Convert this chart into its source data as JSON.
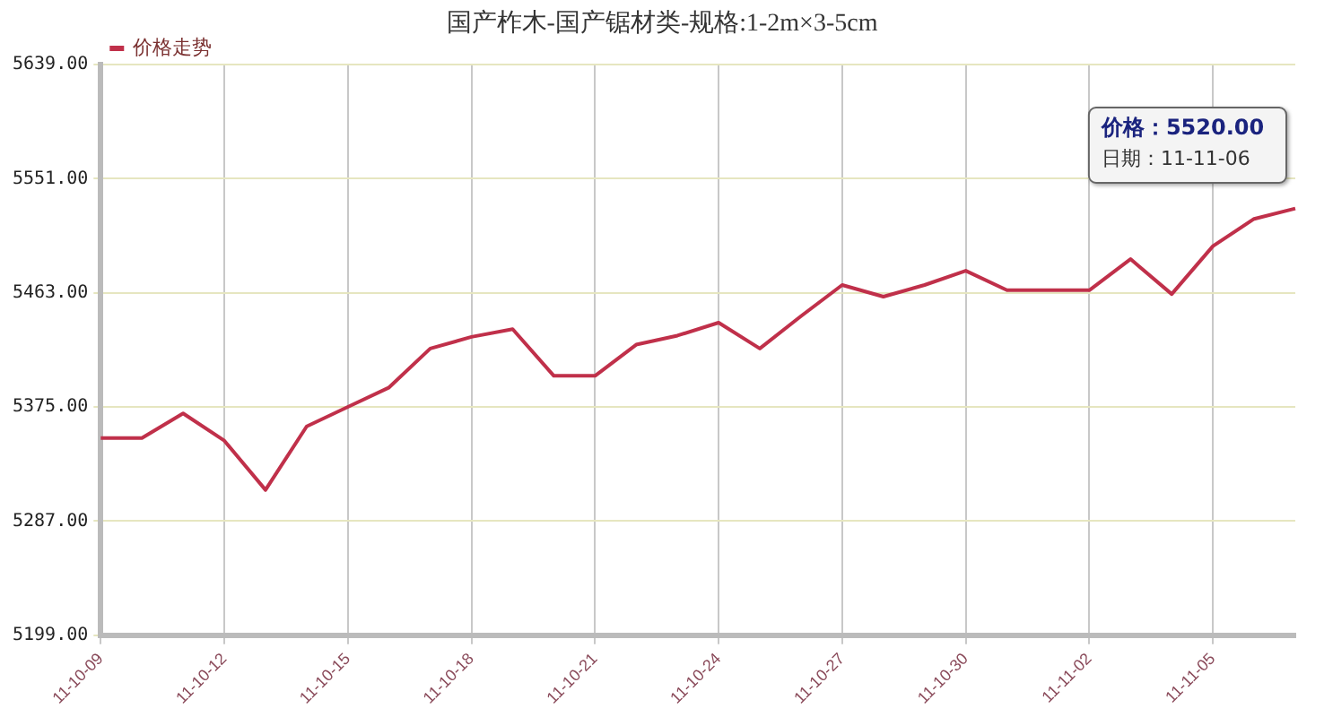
{
  "chart_data": {
    "type": "line",
    "title": "国产柞木-国产锯材类-规格:1-2m×3-5cm",
    "categories": [
      "11-10-09",
      null,
      null,
      "11-10-12",
      null,
      null,
      "11-10-15",
      null,
      null,
      "11-10-18",
      null,
      null,
      "11-10-21",
      null,
      null,
      "11-10-24",
      null,
      null,
      "11-10-27",
      null,
      null,
      "11-10-30",
      null,
      null,
      "11-11-02",
      null,
      null,
      "11-11-05",
      null,
      null
    ],
    "series": [
      {
        "name": "价格走势",
        "color": "#c0304a",
        "values": [
          5351,
          5351,
          5370,
          5349,
          5311,
          5360,
          5375,
          5390,
          5420,
          5429,
          5435,
          5399,
          5399,
          5423,
          5430,
          5440,
          5420,
          5445,
          5469,
          5460,
          5469,
          5480,
          5465,
          5465,
          5465,
          5489,
          5462,
          5499,
          5520,
          5528
        ]
      }
    ],
    "ylim": [
      5199,
      5639
    ],
    "yticks": [
      {
        "value": 5199,
        "label": "5199.00"
      },
      {
        "value": 5287,
        "label": "5287.00"
      },
      {
        "value": 5375,
        "label": "5375.00"
      },
      {
        "value": 5463,
        "label": "5463.00"
      },
      {
        "value": 5551,
        "label": "5551.00"
      },
      {
        "value": 5639,
        "label": "5639.00"
      }
    ],
    "annotations": [
      "价格：5520.00\n日期：11-11-06"
    ],
    "grid": true,
    "legend": "top left",
    "marker": "none",
    "line_style": "solid"
  }
}
